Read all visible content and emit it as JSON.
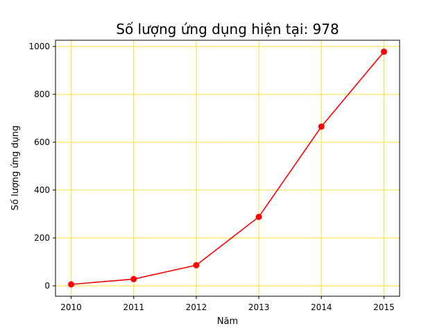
{
  "colors": {
    "line": "#ff0000",
    "grid": "#ffd700",
    "axes": "#000000",
    "background": "#ffffff"
  },
  "chart_data": {
    "type": "line",
    "title": "Số lượng ứng dụng hiện tại: 978",
    "xlabel": "Năm",
    "ylabel": "Số lượng ứng dụng",
    "x": [
      2010,
      2011,
      2012,
      2013,
      2014,
      2015
    ],
    "x_tick_labels": [
      "2010",
      "2011",
      "2012",
      "2013",
      "2014",
      "2015"
    ],
    "y_ticks": [
      0,
      200,
      400,
      600,
      800,
      1000
    ],
    "y_tick_labels": [
      "0",
      "200",
      "400",
      "600",
      "800",
      "1000"
    ],
    "xlim": [
      2009.75,
      2015.25
    ],
    "ylim": [
      -43.6,
      1026.0
    ],
    "grid": true,
    "legend": "none",
    "series": [
      {
        "values": [
          6,
          28,
          86,
          288,
          665,
          978
        ],
        "marker": "circle"
      }
    ]
  }
}
